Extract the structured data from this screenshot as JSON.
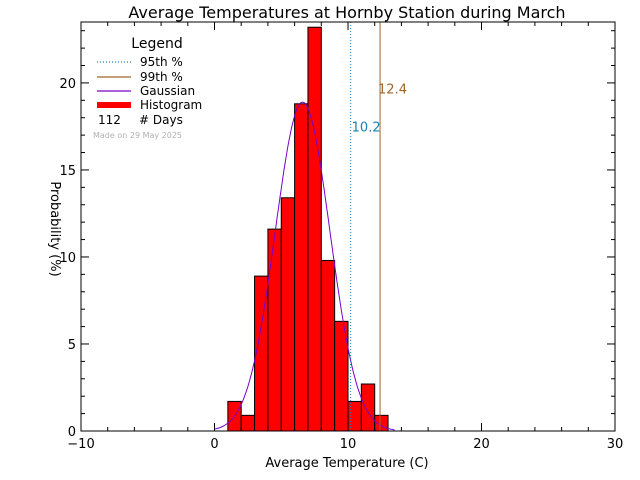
{
  "chart_data": {
    "type": "bar",
    "title": "Average Temperatures at Hornby Station during March",
    "xlabel": "Average Temperature (C)",
    "ylabel": "Probability (%)",
    "xlim": [
      -10,
      30
    ],
    "ylim": [
      0,
      23.5
    ],
    "x_ticks": [
      -10,
      0,
      10,
      20,
      30
    ],
    "y_ticks": [
      0,
      5,
      10,
      15,
      20
    ],
    "bin_width": 1,
    "bin_left_edges": [
      1,
      2,
      3,
      4,
      5,
      6,
      7,
      8,
      9,
      10,
      11,
      12
    ],
    "values": [
      1.7,
      0.9,
      8.9,
      11.6,
      13.4,
      18.8,
      23.2,
      9.8,
      6.3,
      1.7,
      2.7,
      0.9
    ],
    "gaussian": {
      "mean": 6.6,
      "sd": 2.05,
      "peak": 18.9
    },
    "percentile_95": {
      "value": 10.2,
      "label": "10.2",
      "color": "#1a7fb3"
    },
    "percentile_99": {
      "value": 12.4,
      "label": "12.4",
      "color": "#a0642a"
    },
    "legend": {
      "title": "Legend",
      "position": "top-left",
      "entries": [
        {
          "label": "95th %",
          "style": "dotted",
          "color": "#1a7fb3"
        },
        {
          "label": "99th %",
          "style": "solid",
          "color": "#a0642a"
        },
        {
          "label": "Gaussian",
          "style": "solid",
          "color": "#7a00c8"
        },
        {
          "label": "Histogram",
          "style": "thick",
          "color": "#ff0000"
        }
      ],
      "days_count": "112",
      "days_label": "# Days",
      "made_on": "Made on 29 May 2025"
    },
    "colors": {
      "bar": "#ff0000",
      "bar_edge": "#000000",
      "gaussian": "#7a00c8"
    }
  }
}
